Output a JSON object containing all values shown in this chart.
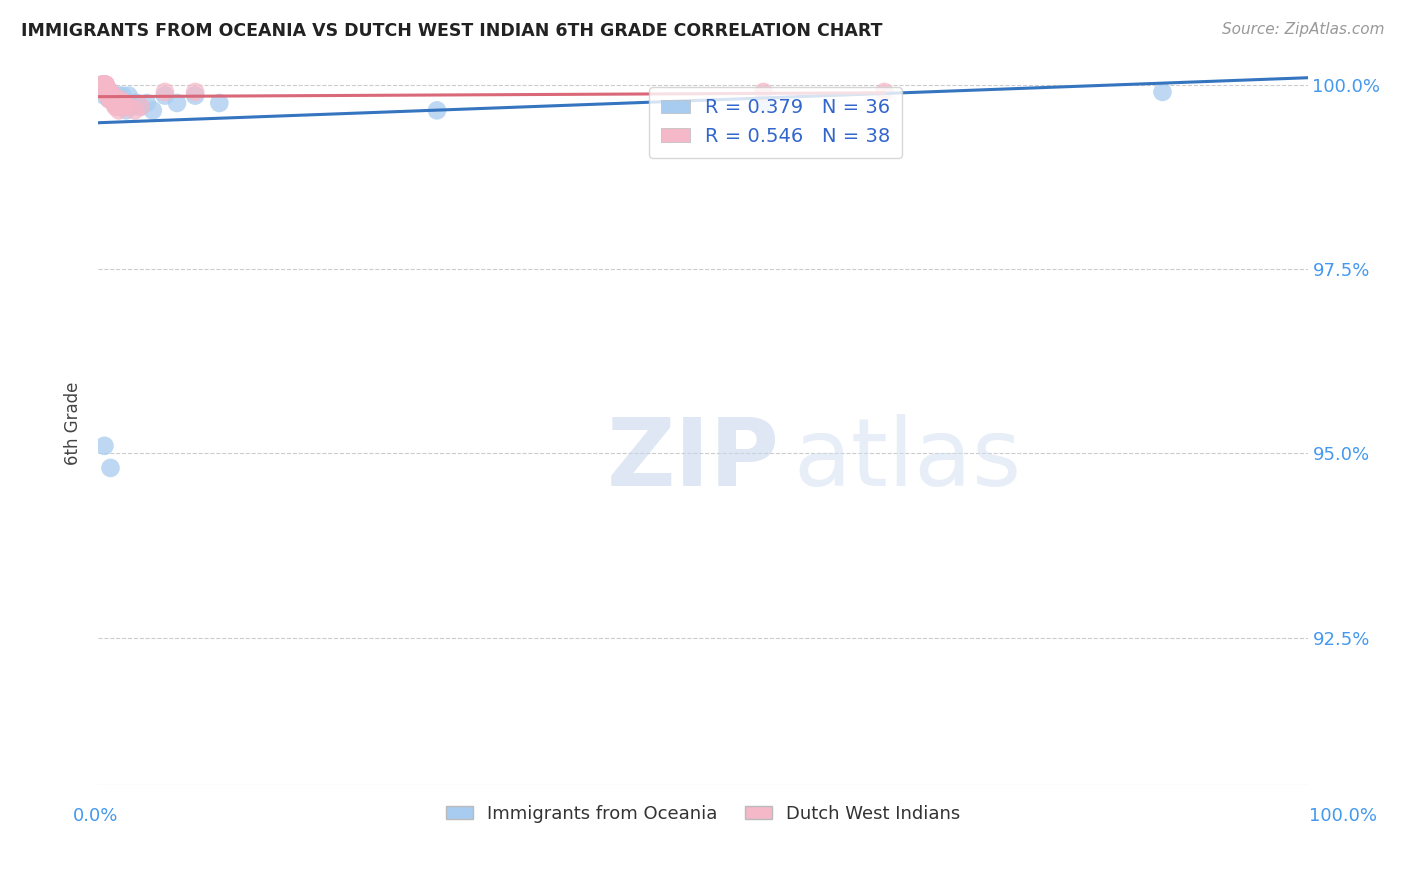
{
  "title": "IMMIGRANTS FROM OCEANIA VS DUTCH WEST INDIAN 6TH GRADE CORRELATION CHART",
  "source": "Source: ZipAtlas.com",
  "ylabel": "6th Grade",
  "x_lim": [
    0.0,
    1.0
  ],
  "y_lim": [
    0.905,
    1.003
  ],
  "y_ticks": [
    0.925,
    0.95,
    0.975,
    1.0
  ],
  "y_tick_labels": [
    "92.5%",
    "95.0%",
    "97.5%",
    "100.0%"
  ],
  "legend_r_blue": "R = 0.379",
  "legend_n_blue": "N = 36",
  "legend_r_pink": "R = 0.546",
  "legend_n_pink": "N = 38",
  "blue_color": "#A8CCF0",
  "pink_color": "#F5B8C8",
  "blue_line_color": "#3575C0",
  "pink_line_color": "#D96878",
  "grid_color": "#CCCCCC",
  "watermark_zip": "ZIP",
  "watermark_atlas": "atlas",
  "blue_scatter_x": [
    0.003,
    0.005,
    0.007,
    0.008,
    0.008,
    0.009,
    0.01,
    0.01,
    0.012,
    0.013,
    0.013,
    0.015,
    0.015,
    0.017,
    0.018,
    0.019,
    0.02,
    0.021,
    0.022,
    0.023,
    0.025,
    0.027,
    0.03,
    0.032,
    0.035,
    0.04,
    0.045,
    0.055,
    0.065,
    0.08,
    0.1,
    0.28,
    0.55,
    0.88,
    0.005,
    0.01
  ],
  "blue_scatter_y": [
    1.0,
    0.9985,
    0.9995,
    0.999,
    0.9985,
    0.998,
    0.9985,
    0.999,
    0.9985,
    0.9975,
    0.998,
    0.9975,
    0.998,
    0.9985,
    0.997,
    0.9975,
    0.9985,
    0.9975,
    0.9975,
    0.9965,
    0.9985,
    0.997,
    0.9975,
    0.9975,
    0.997,
    0.9975,
    0.9965,
    0.9985,
    0.9975,
    0.9985,
    0.9975,
    0.9965,
    0.9975,
    0.999,
    0.951,
    0.948
  ],
  "pink_scatter_x": [
    0.003,
    0.004,
    0.005,
    0.005,
    0.005,
    0.006,
    0.006,
    0.006,
    0.007,
    0.007,
    0.008,
    0.008,
    0.009,
    0.009,
    0.01,
    0.01,
    0.01,
    0.011,
    0.012,
    0.013,
    0.013,
    0.014,
    0.015,
    0.015,
    0.016,
    0.017,
    0.018,
    0.019,
    0.02,
    0.021,
    0.022,
    0.025,
    0.03,
    0.035,
    0.055,
    0.08,
    0.55,
    0.65
  ],
  "pink_scatter_y": [
    1.0,
    1.0,
    1.0,
    1.0,
    1.0,
    1.0,
    1.0,
    0.9995,
    0.9995,
    0.999,
    0.999,
    0.9985,
    0.9985,
    0.998,
    0.999,
    0.9985,
    0.998,
    0.9985,
    0.9985,
    0.998,
    0.9975,
    0.997,
    0.9975,
    0.997,
    0.9975,
    0.9965,
    0.998,
    0.997,
    0.9975,
    0.997,
    0.9975,
    0.997,
    0.9965,
    0.997,
    0.999,
    0.999,
    0.999,
    0.999
  ]
}
